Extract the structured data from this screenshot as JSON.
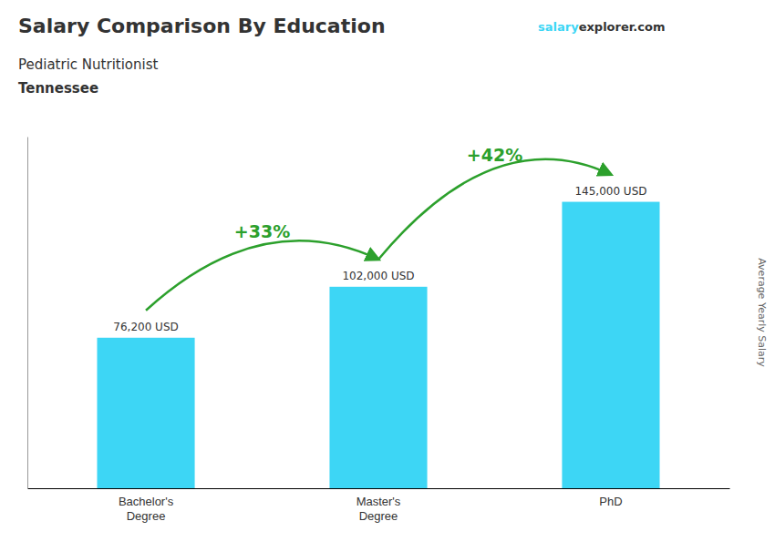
{
  "chart_data": {
    "type": "bar",
    "title": "Salary Comparison By Education",
    "subtitle": "Pediatric Nutritionist",
    "location": "Tennessee",
    "website": [
      "salary",
      "explorer.com"
    ],
    "ylabel": "Average Yearly Salary",
    "categories": [
      "Bachelor's\nDegree",
      "Master's\nDegree",
      "PhD"
    ],
    "values": [
      76200,
      102000,
      145000
    ],
    "value_labels": [
      "76,200 USD",
      "102,000 USD",
      "145,000 USD"
    ],
    "data_labels": true,
    "color": "#3dd6f5",
    "ylim": [
      0,
      178000
    ],
    "tick_labels": "x",
    "grid": false,
    "annotations": [
      "+33%",
      "+42%"
    ]
  }
}
